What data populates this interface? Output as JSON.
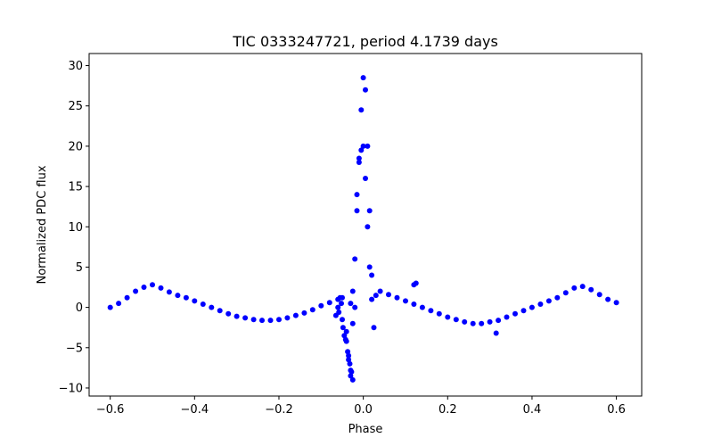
{
  "chart_data": {
    "type": "scatter",
    "title": "TIC 0333247721, period 4.1739 days",
    "xlabel": "Phase",
    "ylabel": "Normalized PDC flux",
    "xlim": [
      -0.65,
      0.66
    ],
    "ylim": [
      -11,
      31.5
    ],
    "xticks": [
      -0.6,
      -0.4,
      -0.2,
      0.0,
      0.2,
      0.4,
      0.6
    ],
    "xtick_labels": [
      "−0.6",
      "−0.4",
      "−0.2",
      "0.0",
      "0.2",
      "0.4",
      "0.6"
    ],
    "yticks": [
      -10,
      -5,
      0,
      5,
      10,
      15,
      20,
      25,
      30
    ],
    "ytick_labels": [
      "−10",
      "−5",
      "0",
      "5",
      "10",
      "15",
      "20",
      "25",
      "30"
    ],
    "grid": false,
    "marker_color": "#0000ff",
    "series": [
      {
        "x": [
          -0.6,
          -0.58,
          -0.56,
          -0.54,
          -0.52,
          -0.5,
          -0.48,
          -0.46,
          -0.44,
          -0.42,
          -0.4,
          -0.38,
          -0.36,
          -0.34,
          -0.32,
          -0.3,
          -0.28,
          -0.26,
          -0.24,
          -0.22,
          -0.2,
          -0.18,
          -0.16,
          -0.14,
          -0.12,
          -0.1,
          -0.08,
          -0.06,
          -0.05,
          -0.04,
          -0.035,
          -0.03,
          -0.025,
          -0.02,
          -0.015,
          -0.01,
          -0.005,
          0.0,
          0.005,
          0.01,
          0.015,
          0.02,
          0.025,
          0.03,
          0.04,
          0.06,
          0.08,
          0.1,
          0.12,
          0.14,
          0.16,
          0.18,
          0.2,
          0.22,
          0.24,
          0.26,
          0.28,
          0.3,
          0.32,
          0.34,
          0.36,
          0.38,
          0.4,
          0.42,
          0.44,
          0.46,
          0.48,
          0.5,
          0.52,
          0.54,
          0.56,
          0.58,
          0.6
        ],
        "y": [
          0.0,
          0.5,
          1.2,
          2.0,
          2.5,
          2.8,
          2.4,
          1.9,
          1.5,
          1.2,
          0.8,
          0.4,
          0.0,
          -0.4,
          -0.8,
          -1.1,
          -1.3,
          -1.5,
          -1.6,
          -1.6,
          -1.5,
          -1.3,
          -1.0,
          -0.7,
          -0.3,
          0.2,
          0.6,
          1.0,
          1.2,
          -3.0,
          -6.0,
          -8.5,
          -2.0,
          0.0,
          12.0,
          18.5,
          24.5,
          28.5,
          27.0,
          20.0,
          12.0,
          4.0,
          -2.5,
          1.5,
          2.0,
          1.6,
          1.2,
          0.8,
          0.4,
          0.0,
          -0.4,
          -0.8,
          -1.2,
          -1.5,
          -1.8,
          -2.0,
          -2.0,
          -1.8,
          -1.6,
          -1.2,
          -0.8,
          -0.4,
          0.0,
          0.4,
          0.8,
          1.2,
          1.8,
          2.4,
          2.6,
          2.2,
          1.6,
          1.0,
          0.6
        ]
      },
      {
        "x": [
          -0.03,
          -0.025,
          -0.02,
          -0.015,
          -0.01,
          -0.005,
          0.0,
          0.005,
          0.01,
          0.015,
          0.02
        ],
        "y": [
          0.5,
          2.0,
          6.0,
          14.0,
          18.0,
          19.5,
          20.0,
          16.0,
          10.0,
          5.0,
          1.0
        ]
      },
      {
        "x": [
          -0.065,
          -0.06,
          -0.058,
          -0.055,
          -0.052,
          -0.05,
          -0.048,
          -0.045,
          -0.042,
          -0.04,
          -0.037,
          -0.035,
          -0.032,
          -0.03,
          -0.028,
          -0.025,
          0.12,
          0.125,
          0.315
        ],
        "y": [
          -1.0,
          0.0,
          -0.6,
          1.2,
          0.5,
          -1.5,
          -2.5,
          -3.5,
          -4.0,
          -4.2,
          -5.5,
          -6.5,
          -7.0,
          -7.8,
          -8.0,
          -9.0,
          2.8,
          3.0,
          -3.2
        ]
      }
    ]
  }
}
